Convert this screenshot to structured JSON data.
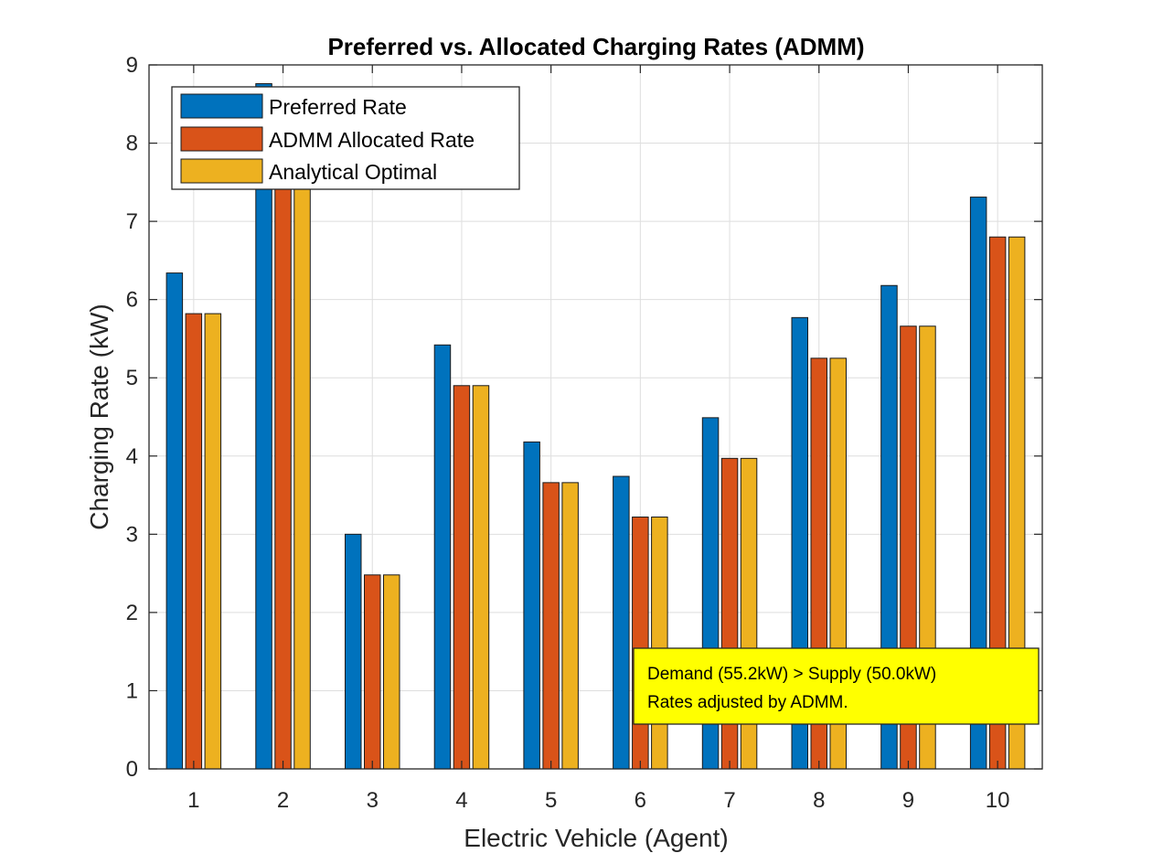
{
  "chart_data": {
    "type": "bar",
    "title": "Preferred vs. Allocated Charging Rates (ADMM)",
    "xlabel": "Electric Vehicle (Agent)",
    "ylabel": "Charging Rate (kW)",
    "ylim": [
      0,
      9
    ],
    "yticks": [
      "0",
      "1",
      "2",
      "3",
      "4",
      "5",
      "6",
      "7",
      "8",
      "9"
    ],
    "categories": [
      "1",
      "2",
      "3",
      "4",
      "5",
      "6",
      "7",
      "8",
      "9",
      "10"
    ],
    "grid": true,
    "legend_position": "top-left",
    "series": [
      {
        "name": "Preferred Rate",
        "color": "#0072BD",
        "values": [
          6.34,
          8.76,
          3.0,
          5.42,
          4.18,
          3.74,
          4.49,
          5.77,
          6.18,
          7.31
        ]
      },
      {
        "name": "ADMM Allocated Rate",
        "color": "#D95319",
        "values": [
          5.82,
          8.24,
          2.48,
          4.9,
          3.66,
          3.22,
          3.97,
          5.25,
          5.66,
          6.8
        ]
      },
      {
        "name": "Analytical Optimal",
        "color": "#EDB120",
        "values": [
          5.82,
          8.24,
          2.48,
          4.9,
          3.66,
          3.22,
          3.97,
          5.25,
          5.66,
          6.8
        ]
      }
    ],
    "annotation": {
      "lines": [
        "Demand (55.2kW) > Supply (50.0kW)",
        "Rates adjusted by ADMM."
      ],
      "background": "#FFFF00"
    }
  }
}
